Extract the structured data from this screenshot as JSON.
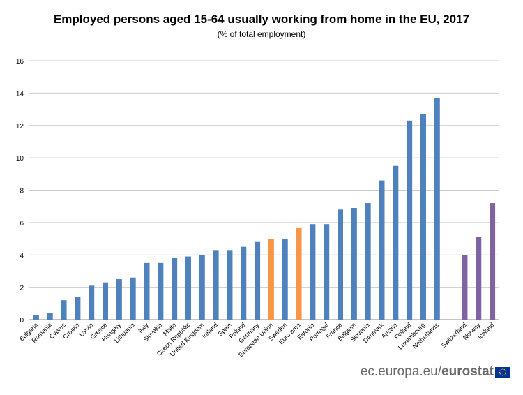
{
  "title": "Employed persons aged 15-64 usually working from home in the EU, 2017",
  "subtitle": "(% of total employment)",
  "footer": {
    "site": "ec.europa.eu/",
    "brand": "eurostat"
  },
  "colors": {
    "eu_member": "#4f81bd",
    "aggregate": "#f79646",
    "non_eu": "#8064a2",
    "grid": "#cccccc",
    "axis": "#888888"
  },
  "icons": {
    "logo": "eu-flag-icon"
  },
  "chart_data": {
    "type": "bar",
    "title": "Employed persons aged 15-64 usually working from home in the EU, 2017",
    "subtitle": "(% of total employment)",
    "xlabel": "",
    "ylabel": "",
    "ylim": [
      0,
      16
    ],
    "yticks": [
      0,
      2,
      4,
      6,
      8,
      10,
      12,
      14,
      16
    ],
    "grid": true,
    "legend": "none",
    "categories": [
      "Bulgaria",
      "Romania",
      "Cyprus",
      "Croatia",
      "Latvia",
      "Greece",
      "Hungary",
      "Lithuania",
      "Italy",
      "Slovakia",
      "Malta",
      "Czech Republic",
      "United Kingdom",
      "Ireland",
      "Spain",
      "Poland",
      "Germany",
      "European Union",
      "Sweden",
      "Euro area",
      "Estonia",
      "Portugal",
      "France",
      "Belgium",
      "Slovenia",
      "Denmark",
      "Austria",
      "Finland",
      "Luxembourg",
      "Netherlands",
      "",
      "Switzerland",
      "Norway",
      "Iceland"
    ],
    "values": [
      0.3,
      0.4,
      1.2,
      1.4,
      2.1,
      2.3,
      2.5,
      2.6,
      3.5,
      3.5,
      3.8,
      3.9,
      4.0,
      4.3,
      4.3,
      4.5,
      4.8,
      5.0,
      5.0,
      5.7,
      5.9,
      5.9,
      6.8,
      6.9,
      7.2,
      8.6,
      9.5,
      12.3,
      12.7,
      13.7,
      null,
      4.0,
      5.1,
      7.2
    ],
    "groups": [
      "member",
      "member",
      "member",
      "member",
      "member",
      "member",
      "member",
      "member",
      "member",
      "member",
      "member",
      "member",
      "member",
      "member",
      "member",
      "member",
      "member",
      "aggregate",
      "member",
      "aggregate",
      "member",
      "member",
      "member",
      "member",
      "member",
      "member",
      "member",
      "member",
      "member",
      "member",
      "gap",
      "non_eu",
      "non_eu",
      "non_eu"
    ]
  }
}
